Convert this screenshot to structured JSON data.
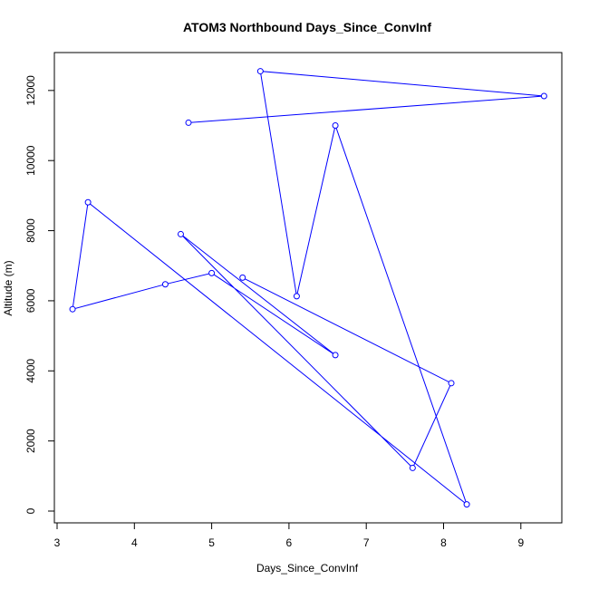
{
  "chart_data": {
    "type": "line",
    "title": "ATOM3 Northbound Days_Since_ConvInf",
    "xlabel": "Days_Since_ConvInf",
    "ylabel": "Altitude (m)",
    "xlim": [
      3,
      9.3
    ],
    "ylim": [
      0,
      12600
    ],
    "x_ticks": [
      3,
      4,
      5,
      6,
      7,
      8,
      9
    ],
    "y_ticks": [
      0,
      2000,
      4000,
      6000,
      8000,
      10000,
      12000
    ],
    "grid": false,
    "legend": "none",
    "colors": {
      "series": "#0000ff",
      "axis": "#000000"
    },
    "series": [
      {
        "marker": "open-circle",
        "points": [
          {
            "x": 4.7,
            "y": 11080
          },
          {
            "x": 9.3,
            "y": 11840
          },
          {
            "x": 5.63,
            "y": 12550
          },
          {
            "x": 6.1,
            "y": 6130
          },
          {
            "x": 6.6,
            "y": 11000
          },
          {
            "x": 8.3,
            "y": 190
          },
          {
            "x": 3.4,
            "y": 8810
          },
          {
            "x": 3.2,
            "y": 5760
          },
          {
            "x": 4.4,
            "y": 6470
          },
          {
            "x": 5.0,
            "y": 6790
          },
          {
            "x": 6.6,
            "y": 4450
          },
          {
            "x": 4.6,
            "y": 7900
          },
          {
            "x": 7.6,
            "y": 1230
          },
          {
            "x": 8.1,
            "y": 3650
          },
          {
            "x": 5.4,
            "y": 6660
          }
        ]
      }
    ]
  }
}
